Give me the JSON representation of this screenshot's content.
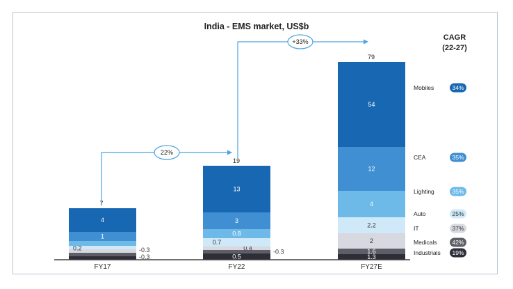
{
  "chart_data": {
    "type": "bar",
    "stacked": true,
    "title": "India - EMS market, US$b",
    "categories": [
      "FY17",
      "FY22",
      "FY27E"
    ],
    "totals": [
      7,
      19,
      79
    ],
    "series": [
      {
        "name": "Industrials",
        "color": "#2e2e38",
        "values": [
          0.3,
          0.5,
          1.3
        ],
        "labels": [
          "0.3",
          "0.5",
          "1.3"
        ]
      },
      {
        "name": "Medicals",
        "color": "#5e5e66",
        "values": [
          0.3,
          0.3,
          1.6
        ],
        "labels": [
          "0.3",
          "0.3",
          "1.6"
        ]
      },
      {
        "name": "IT",
        "color": "#d7d8e0",
        "values": [
          0.2,
          0.4,
          2
        ],
        "labels": [
          "",
          "0.4",
          "2"
        ]
      },
      {
        "name": "Auto",
        "color": "#cfe9f8",
        "values": [
          0.2,
          0.7,
          2.2
        ],
        "labels": [
          "0.2",
          "0.7",
          "2.2"
        ]
      },
      {
        "name": "Lighting",
        "color": "#6db9e8",
        "values": [
          0.2,
          0.8,
          4
        ],
        "labels": [
          "",
          "0.8",
          "4"
        ]
      },
      {
        "name": "CEA",
        "color": "#3f8fd2",
        "values": [
          1,
          3,
          12
        ],
        "labels": [
          "1",
          "3",
          "12"
        ]
      },
      {
        "name": "Mobiles",
        "color": "#1867b2",
        "values": [
          4,
          13,
          54
        ],
        "labels": [
          "4",
          "13",
          "54"
        ]
      }
    ],
    "growth_arrows": [
      {
        "from": "FY17",
        "to": "FY22",
        "label": "22%"
      },
      {
        "from": "FY22",
        "to": "FY27E",
        "label": "+33%"
      }
    ],
    "cagr_header": "CAGR\n(22-27)",
    "cagr_title": "CAGR",
    "cagr_subtitle": "(22-27)",
    "cagr": [
      {
        "segment": "Mobiles",
        "value": "34%",
        "color": "#1867b2",
        "text_color": "#ffffff"
      },
      {
        "segment": "CEA",
        "value": "35%",
        "color": "#3f8fd2",
        "text_color": "#ffffff"
      },
      {
        "segment": "Lighting",
        "value": "35%",
        "color": "#6db9e8",
        "text_color": "#ffffff"
      },
      {
        "segment": "Auto",
        "value": "25%",
        "color": "#cfe9f8",
        "text_color": "#333333"
      },
      {
        "segment": "IT",
        "value": "37%",
        "color": "#d7d8e0",
        "text_color": "#333333"
      },
      {
        "segment": "Medicals",
        "value": "42%",
        "color": "#5e5e66",
        "text_color": "#ffffff"
      },
      {
        "segment": "Industrials",
        "value": "19%",
        "color": "#2e2e38",
        "text_color": "#ffffff"
      }
    ]
  }
}
